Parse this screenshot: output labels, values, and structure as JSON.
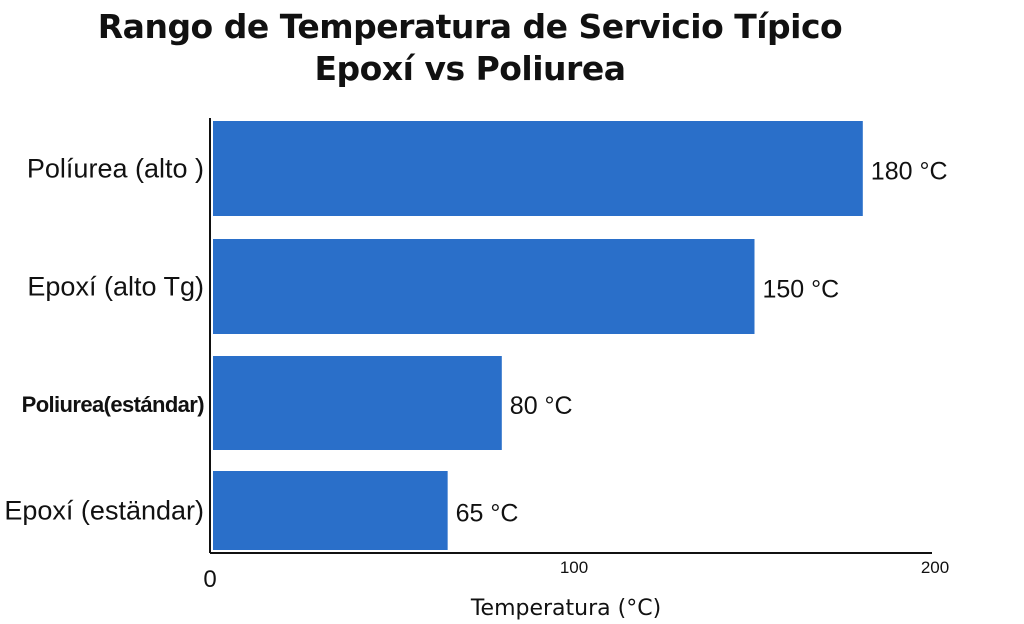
{
  "chart_data": {
    "type": "bar",
    "orientation": "horizontal",
    "title": "Rango de Temperatura de Servicio Típico",
    "subtitle": "Epoxí vs Poliurea",
    "categories": [
      "Políurea (alto )",
      "Epoxí (alto Tg)",
      "Poliurea(estándar)",
      "Epoxí (eständar)"
    ],
    "values": [
      180,
      150,
      80,
      65
    ],
    "value_labels": [
      "180 °C",
      "150 °C",
      "80 °C",
      "65 °C"
    ],
    "xlabel": "Temperatura (°C)",
    "ylabel": "",
    "xlim": [
      0,
      200
    ],
    "x_ticks": [
      0,
      100,
      200
    ],
    "x_tick_labels": [
      "0",
      "100",
      "200"
    ],
    "bar_color": "#2a6fc9",
    "grid": false,
    "legend": "none"
  }
}
